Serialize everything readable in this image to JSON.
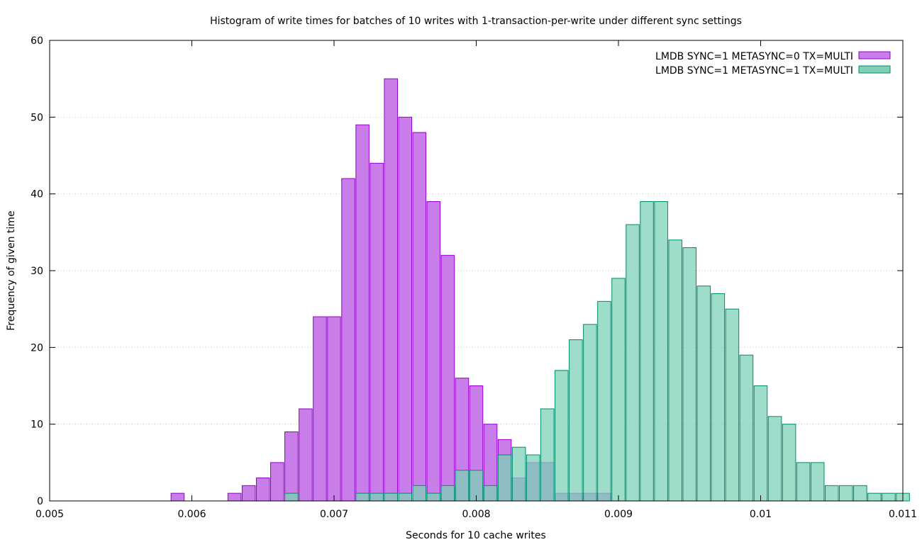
{
  "chart_data": {
    "type": "bar",
    "title": "Histogram of write times for batches of 10 writes with 1-transaction-per-write under different sync settings",
    "xlabel": "Seconds for 10 cache writes",
    "ylabel": "Frequency of given time",
    "xlim": [
      0.005,
      0.011
    ],
    "ylim": [
      0,
      60
    ],
    "bin_width": 0.0001,
    "x_ticks": [
      "0.005",
      "0.006",
      "0.007",
      "0.008",
      "0.009",
      "0.01",
      "0.011"
    ],
    "x_tick_values": [
      0.005,
      0.006,
      0.007,
      0.008,
      0.009,
      0.01,
      0.011
    ],
    "y_ticks": [
      "0",
      "10",
      "20",
      "30",
      "40",
      "50",
      "60"
    ],
    "y_tick_values": [
      0,
      10,
      20,
      30,
      40,
      50,
      60
    ],
    "grid": {
      "horizontal": true,
      "vertical": false,
      "style": "dotted"
    },
    "legend_position": "top-right",
    "series": [
      {
        "name": "LMDB SYNC=1 METASYNC=0 TX=MULTI",
        "fill": "#c87de8",
        "stroke": "#9400d3",
        "x": [
          0.0059,
          0.0063,
          0.0064,
          0.0065,
          0.0066,
          0.0067,
          0.0068,
          0.0069,
          0.007,
          0.0071,
          0.0072,
          0.0073,
          0.0074,
          0.0075,
          0.0076,
          0.0077,
          0.0078,
          0.0079,
          0.008,
          0.0081,
          0.0082,
          0.0083,
          0.0084,
          0.0085,
          0.0086,
          0.0087,
          0.0088,
          0.0089
        ],
        "values": [
          1,
          1,
          2,
          3,
          5,
          9,
          12,
          24,
          24,
          42,
          49,
          44,
          55,
          50,
          48,
          39,
          32,
          16,
          15,
          10,
          8,
          3,
          5,
          5,
          1,
          1,
          1,
          1
        ]
      },
      {
        "name": "LMDB SYNC=1 METASYNC=1 TX=MULTI",
        "fill": "#7dd1b8",
        "stroke": "#008b6b",
        "x": [
          0.0067,
          0.0072,
          0.0073,
          0.0074,
          0.0075,
          0.0076,
          0.0077,
          0.0078,
          0.0079,
          0.008,
          0.0081,
          0.0082,
          0.0083,
          0.0084,
          0.0085,
          0.0086,
          0.0087,
          0.0088,
          0.0089,
          0.009,
          0.0091,
          0.0092,
          0.0093,
          0.0094,
          0.0095,
          0.0096,
          0.0097,
          0.0098,
          0.0099,
          0.01,
          0.0101,
          0.0102,
          0.0103,
          0.0104,
          0.0105,
          0.0106,
          0.0107,
          0.0108,
          0.0109,
          0.011
        ],
        "values": [
          1,
          1,
          1,
          1,
          1,
          2,
          1,
          2,
          4,
          4,
          2,
          6,
          7,
          6,
          12,
          17,
          21,
          23,
          26,
          29,
          36,
          39,
          39,
          34,
          33,
          28,
          27,
          25,
          19,
          15,
          11,
          10,
          5,
          5,
          2,
          2,
          2,
          1,
          1,
          1
        ]
      }
    ]
  }
}
